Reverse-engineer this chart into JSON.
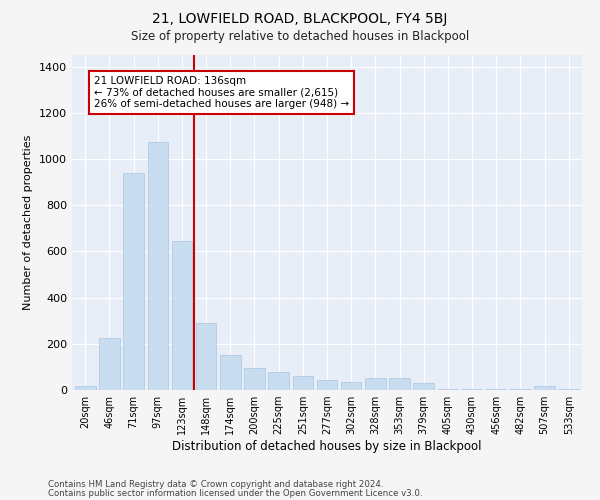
{
  "title": "21, LOWFIELD ROAD, BLACKPOOL, FY4 5BJ",
  "subtitle": "Size of property relative to detached houses in Blackpool",
  "xlabel": "Distribution of detached houses by size in Blackpool",
  "ylabel": "Number of detached properties",
  "bar_color": "#c9ddf0",
  "bar_edge_color": "#aac4e0",
  "background_color": "#e8eef8",
  "grid_color": "#ffffff",
  "categories": [
    "20sqm",
    "46sqm",
    "71sqm",
    "97sqm",
    "123sqm",
    "148sqm",
    "174sqm",
    "200sqm",
    "225sqm",
    "251sqm",
    "277sqm",
    "302sqm",
    "328sqm",
    "353sqm",
    "379sqm",
    "405sqm",
    "430sqm",
    "456sqm",
    "482sqm",
    "507sqm",
    "533sqm"
  ],
  "values": [
    18,
    225,
    940,
    1075,
    645,
    290,
    150,
    95,
    80,
    60,
    45,
    35,
    50,
    50,
    30,
    5,
    5,
    5,
    5,
    18,
    5
  ],
  "vline_x": 4.5,
  "vline_color": "#cc0000",
  "annotation_text": "21 LOWFIELD ROAD: 136sqm\n← 73% of detached houses are smaller (2,615)\n26% of semi-detached houses are larger (948) →",
  "annotation_box_color": "#ffffff",
  "annotation_box_edge": "#cc0000",
  "ylim": [
    0,
    1450
  ],
  "yticks": [
    0,
    200,
    400,
    600,
    800,
    1000,
    1200,
    1400
  ],
  "footer1": "Contains HM Land Registry data © Crown copyright and database right 2024.",
  "footer2": "Contains public sector information licensed under the Open Government Licence v3.0."
}
